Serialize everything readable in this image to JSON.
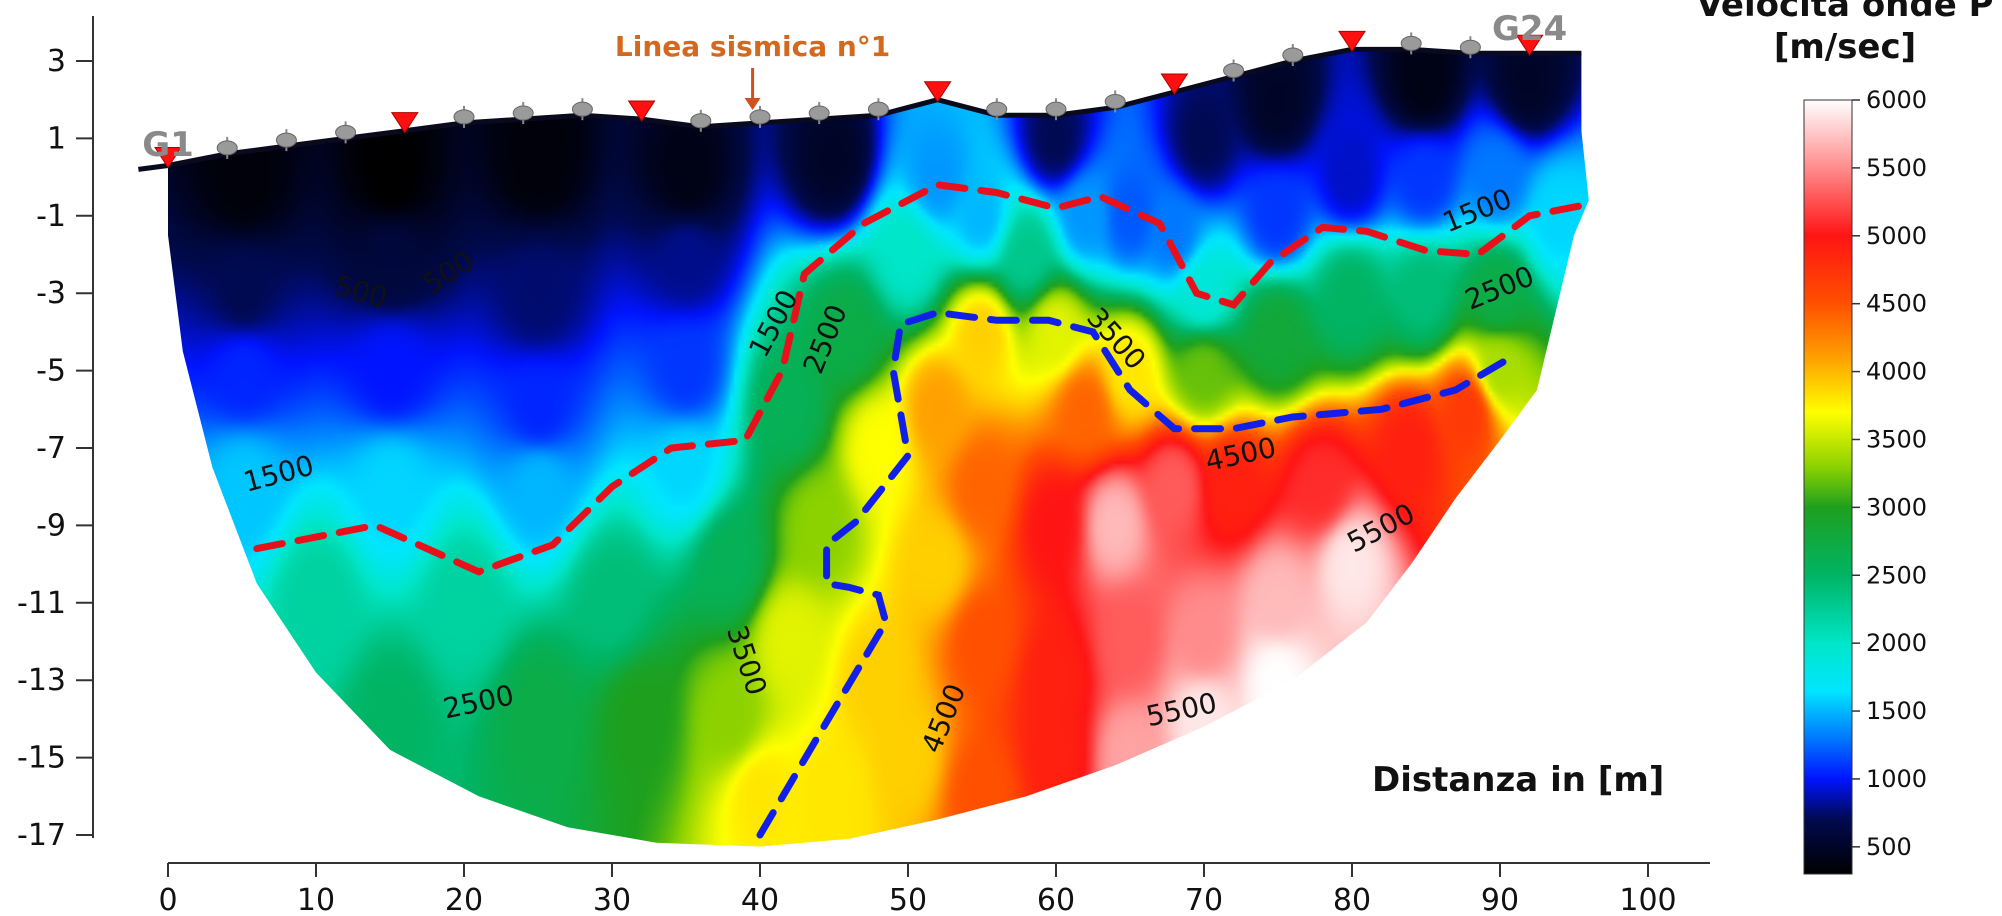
{
  "chart_data": {
    "type": "heatmap",
    "xlabel": "Distanza in [m]",
    "ylabel": "",
    "x_ticks": [
      0,
      10,
      20,
      30,
      40,
      50,
      60,
      70,
      80,
      90,
      100
    ],
    "y_ticks": [
      3,
      1,
      -1,
      -3,
      -5,
      -7,
      -9,
      -11,
      -13,
      -15,
      -17
    ],
    "xlim": [
      -2,
      104
    ],
    "ylim": [
      -17.2,
      4.8
    ],
    "colorbar": {
      "title_line1": "Velocità onde P",
      "title_line2": "[m/sec]",
      "min": 300,
      "max": 6000,
      "ticks": [
        500,
        1000,
        1500,
        2000,
        2500,
        3000,
        3500,
        4000,
        4500,
        5000,
        5500,
        6000
      ],
      "stops": [
        {
          "v": 300,
          "color": "#000000"
        },
        {
          "v": 700,
          "color": "#000a50"
        },
        {
          "v": 1000,
          "color": "#0014ff"
        },
        {
          "v": 1300,
          "color": "#0078ff"
        },
        {
          "v": 1650,
          "color": "#00e6ff"
        },
        {
          "v": 2000,
          "color": "#00e6c8"
        },
        {
          "v": 2500,
          "color": "#00b464"
        },
        {
          "v": 3000,
          "color": "#1ea01e"
        },
        {
          "v": 3300,
          "color": "#8cd200"
        },
        {
          "v": 3700,
          "color": "#ffff00"
        },
        {
          "v": 4100,
          "color": "#ffa000"
        },
        {
          "v": 4500,
          "color": "#ff5000"
        },
        {
          "v": 5000,
          "color": "#ff1414"
        },
        {
          "v": 5500,
          "color": "#ff8c8c"
        },
        {
          "v": 6000,
          "color": "#ffffff"
        }
      ]
    },
    "annotations": {
      "seismic_line_label": "Linea sismica n°1",
      "seismic_line_x": 39.5,
      "start_geophone": "G1",
      "end_geophone": "G24"
    },
    "topography": [
      [
        -2,
        0.2
      ],
      [
        0,
        0.3
      ],
      [
        4,
        0.6
      ],
      [
        8,
        0.8
      ],
      [
        12,
        1.0
      ],
      [
        16,
        1.2
      ],
      [
        20,
        1.4
      ],
      [
        24,
        1.5
      ],
      [
        28,
        1.6
      ],
      [
        32,
        1.5
      ],
      [
        36,
        1.3
      ],
      [
        40,
        1.4
      ],
      [
        44,
        1.5
      ],
      [
        48,
        1.6
      ],
      [
        50,
        1.8
      ],
      [
        52,
        2.0
      ],
      [
        56,
        1.6
      ],
      [
        60,
        1.6
      ],
      [
        64,
        1.8
      ],
      [
        68,
        2.2
      ],
      [
        72,
        2.6
      ],
      [
        76,
        3.0
      ],
      [
        80,
        3.3
      ],
      [
        84,
        3.3
      ],
      [
        88,
        3.2
      ],
      [
        92,
        3.2
      ],
      [
        95.5,
        3.2
      ]
    ],
    "geophones_x": [
      4,
      8,
      12,
      20,
      24,
      28,
      36,
      40,
      44,
      48,
      56,
      60,
      64,
      72,
      76,
      84,
      88
    ],
    "shots_x": [
      0,
      16,
      32,
      52,
      68,
      80,
      92
    ],
    "contour_labels": [
      {
        "text": "500",
        "x": 13,
        "y": -3.0,
        "rot": 15
      },
      {
        "text": "500",
        "x": 19,
        "y": -2.5,
        "rot": -32
      },
      {
        "text": "1500",
        "x": 7.5,
        "y": -7.7,
        "rot": -15
      },
      {
        "text": "1500",
        "x": 41,
        "y": -3.8,
        "rot": -62
      },
      {
        "text": "2500",
        "x": 44.5,
        "y": -4.2,
        "rot": -68
      },
      {
        "text": "3500",
        "x": 64,
        "y": -4.2,
        "rot": 48
      },
      {
        "text": "1500",
        "x": 88.5,
        "y": -0.9,
        "rot": -22
      },
      {
        "text": "2500",
        "x": 90,
        "y": -2.9,
        "rot": -22
      },
      {
        "text": "4500",
        "x": 72.5,
        "y": -7.2,
        "rot": -12
      },
      {
        "text": "5500",
        "x": 82,
        "y": -9.1,
        "rot": -28
      },
      {
        "text": "2500",
        "x": 21,
        "y": -13.6,
        "rot": -12
      },
      {
        "text": "3500",
        "x": 39,
        "y": -12.5,
        "rot": 72
      },
      {
        "text": "4500",
        "x": 52.5,
        "y": -14.0,
        "rot": -68
      },
      {
        "text": "5500",
        "x": 68.5,
        "y": -13.8,
        "rot": -12
      }
    ],
    "interface_red": [
      [
        6,
        -9.6
      ],
      [
        14,
        -9.0
      ],
      [
        21,
        -10.2
      ],
      [
        26,
        -9.5
      ],
      [
        30,
        -8.0
      ],
      [
        34,
        -7.0
      ],
      [
        39,
        -6.8
      ],
      [
        41.5,
        -5.0
      ],
      [
        43,
        -2.5
      ],
      [
        47,
        -1.2
      ],
      [
        52,
        -0.2
      ],
      [
        56,
        -0.4
      ],
      [
        60,
        -0.8
      ],
      [
        63,
        -0.5
      ],
      [
        67,
        -1.2
      ],
      [
        69.5,
        -3.0
      ],
      [
        72,
        -3.3
      ],
      [
        74.5,
        -2.2
      ],
      [
        78,
        -1.3
      ],
      [
        81,
        -1.4
      ],
      [
        85,
        -1.9
      ],
      [
        88.5,
        -2.0
      ],
      [
        92,
        -1.0
      ],
      [
        96,
        -0.7
      ]
    ],
    "interface_blue": [
      [
        40,
        -17.0
      ],
      [
        44,
        -14.4
      ],
      [
        48.5,
        -11.5
      ],
      [
        48,
        -10.8
      ],
      [
        46,
        -10.6
      ],
      [
        44.5,
        -10.5
      ],
      [
        44.5,
        -9.5
      ],
      [
        46.5,
        -8.9
      ],
      [
        50,
        -7.2
      ],
      [
        49,
        -5.0
      ],
      [
        49.5,
        -3.8
      ],
      [
        52,
        -3.5
      ],
      [
        56,
        -3.7
      ],
      [
        59.5,
        -3.7
      ],
      [
        62.5,
        -4.0
      ],
      [
        65,
        -5.5
      ],
      [
        68,
        -6.5
      ],
      [
        72,
        -6.5
      ],
      [
        76,
        -6.2
      ],
      [
        82,
        -6.0
      ],
      [
        87,
        -5.5
      ],
      [
        91,
        -4.6
      ]
    ],
    "section_boundary": [
      [
        0,
        0.3
      ],
      [
        0,
        -1.5
      ],
      [
        1,
        -4.5
      ],
      [
        3,
        -7.5
      ],
      [
        6,
        -10.5
      ],
      [
        10,
        -12.8
      ],
      [
        15,
        -14.8
      ],
      [
        21,
        -16.0
      ],
      [
        27,
        -16.8
      ],
      [
        33,
        -17.2
      ],
      [
        40,
        -17.3
      ],
      [
        46,
        -17.1
      ],
      [
        52,
        -16.6
      ],
      [
        58,
        -16.0
      ],
      [
        64,
        -15.2
      ],
      [
        70,
        -14.2
      ],
      [
        76,
        -13.0
      ],
      [
        81,
        -11.5
      ],
      [
        84,
        -10.0
      ],
      [
        87,
        -8.3
      ],
      [
        90,
        -6.8
      ],
      [
        92.5,
        -5.5
      ],
      [
        95,
        -1.5
      ],
      [
        96,
        -0.6
      ],
      [
        95.5,
        1.2
      ],
      [
        95.5,
        3.2
      ]
    ],
    "velocity_points": [
      [
        5,
        0,
        350
      ],
      [
        15,
        0,
        300
      ],
      [
        25,
        0.5,
        350
      ],
      [
        35,
        0,
        400
      ],
      [
        45,
        0.5,
        500
      ],
      [
        5,
        -3,
        700
      ],
      [
        15,
        -2,
        600
      ],
      [
        25,
        -3,
        750
      ],
      [
        35,
        -2,
        800
      ],
      [
        5,
        -5,
        1050
      ],
      [
        15,
        -5,
        1000
      ],
      [
        25,
        -6,
        1050
      ],
      [
        35,
        -5,
        1100
      ],
      [
        5,
        -8,
        1550
      ],
      [
        15,
        -8,
        1600
      ],
      [
        25,
        -8,
        1500
      ],
      [
        35,
        -7.5,
        1600
      ],
      [
        10,
        -11,
        2200
      ],
      [
        20,
        -11,
        2200
      ],
      [
        30,
        -11,
        2400
      ],
      [
        38,
        -10,
        2600
      ],
      [
        15,
        -14,
        2500
      ],
      [
        25,
        -14,
        2700
      ],
      [
        32,
        -14,
        3000
      ],
      [
        38,
        -14,
        3300
      ],
      [
        40,
        -16,
        3800
      ],
      [
        42,
        -12,
        3600
      ],
      [
        44,
        -9,
        3300
      ],
      [
        42,
        -6,
        2600
      ],
      [
        46,
        -4,
        2700
      ],
      [
        50,
        -2,
        2000
      ],
      [
        52,
        0,
        1400
      ],
      [
        55,
        -1,
        1500
      ],
      [
        48,
        -7,
        3700
      ],
      [
        52,
        -6,
        4100
      ],
      [
        55,
        -4,
        3900
      ],
      [
        58,
        -2,
        2300
      ],
      [
        62,
        -1,
        1400
      ],
      [
        65,
        -1,
        1200
      ],
      [
        68,
        -1.5,
        1300
      ],
      [
        70,
        -3,
        1900
      ],
      [
        60,
        -4,
        3600
      ],
      [
        62,
        -6,
        4400
      ],
      [
        65,
        -5,
        3800
      ],
      [
        70,
        -5,
        3200
      ],
      [
        75,
        -4,
        2800
      ],
      [
        80,
        -3,
        2500
      ],
      [
        85,
        -3,
        2400
      ],
      [
        90,
        -3,
        2700
      ],
      [
        75,
        -1,
        1100
      ],
      [
        80,
        0,
        900
      ],
      [
        85,
        0,
        1100
      ],
      [
        90,
        0,
        1300
      ],
      [
        94,
        -1,
        1600
      ],
      [
        55,
        -8,
        4400
      ],
      [
        60,
        -9,
        5000
      ],
      [
        64,
        -9,
        5700
      ],
      [
        68,
        -8,
        5300
      ],
      [
        72,
        -8,
        4900
      ],
      [
        78,
        -8,
        5100
      ],
      [
        84,
        -7,
        4900
      ],
      [
        88,
        -6,
        4700
      ],
      [
        55,
        -12,
        4500
      ],
      [
        60,
        -13,
        4900
      ],
      [
        65,
        -12,
        5300
      ],
      [
        70,
        -12,
        5500
      ],
      [
        75,
        -11,
        5700
      ],
      [
        80,
        -10,
        5900
      ],
      [
        70,
        -14,
        5900
      ],
      [
        75,
        -13,
        6000
      ],
      [
        50,
        -15,
        3900
      ],
      [
        55,
        -16,
        4500
      ],
      [
        60,
        -15,
        4900
      ],
      [
        65,
        -15,
        5600
      ],
      [
        45,
        -16,
        3800
      ],
      [
        48,
        -13,
        3900
      ],
      [
        52,
        -10,
        3900
      ],
      [
        90,
        -5,
        3400
      ],
      [
        60,
        1,
        700
      ],
      [
        70,
        1,
        700
      ],
      [
        75,
        2,
        500
      ],
      [
        85,
        2.5,
        400
      ],
      [
        92,
        2.5,
        500
      ]
    ]
  }
}
